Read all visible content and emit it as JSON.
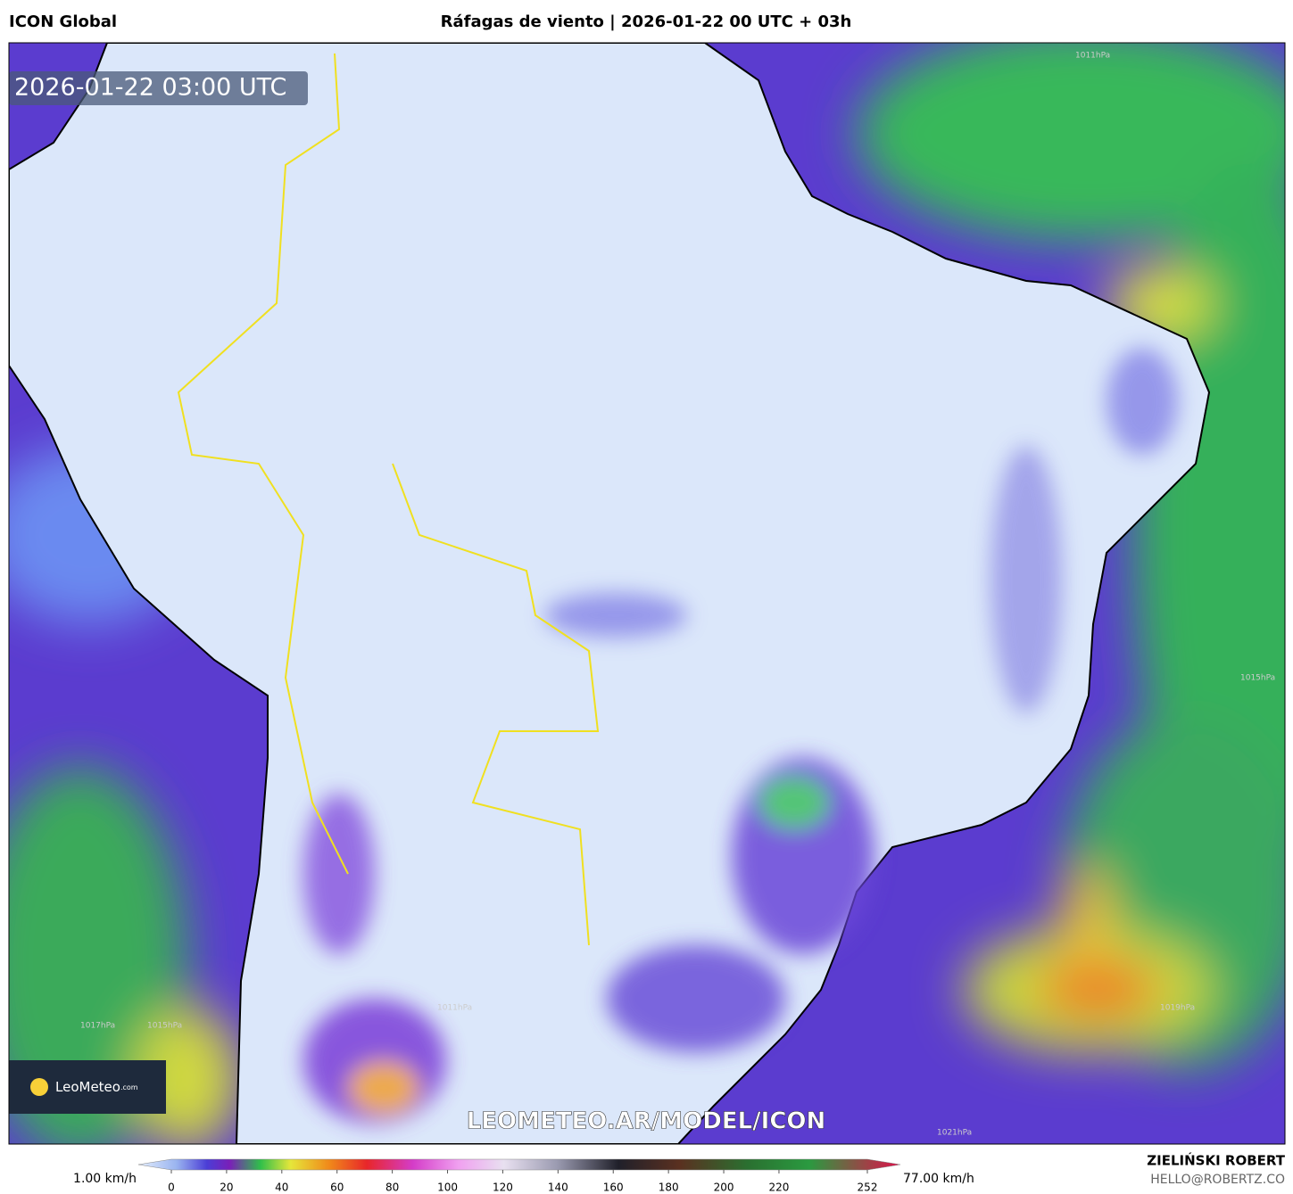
{
  "header": {
    "model": "ICON Global",
    "title": "Ráfagas de viento | 2026-01-22 00 UTC + 03h"
  },
  "map": {
    "valid_time": "2026-01-22 03:00 UTC",
    "watermark": "LEOMETEO.AR/MODEL/ICON",
    "logo": {
      "name": "LeoMeteo",
      "suffix": ".com"
    },
    "isobars": [
      "1011hPa",
      "1015hPa",
      "1019hPa",
      "1021hPa",
      "1017hPa",
      "1015hPa",
      "1011hPa"
    ]
  },
  "colorbar": {
    "min_label": "1.00 km/h",
    "max_label": "77.00 km/h",
    "lim": [
      0,
      252
    ],
    "ticks": [
      0,
      20,
      40,
      60,
      80,
      100,
      120,
      140,
      160,
      180,
      200,
      220,
      252
    ]
  },
  "footer": {
    "author": "ZIELIŃSKI ROBERT",
    "email": "HELLO@ROBERTZ.CO"
  }
}
